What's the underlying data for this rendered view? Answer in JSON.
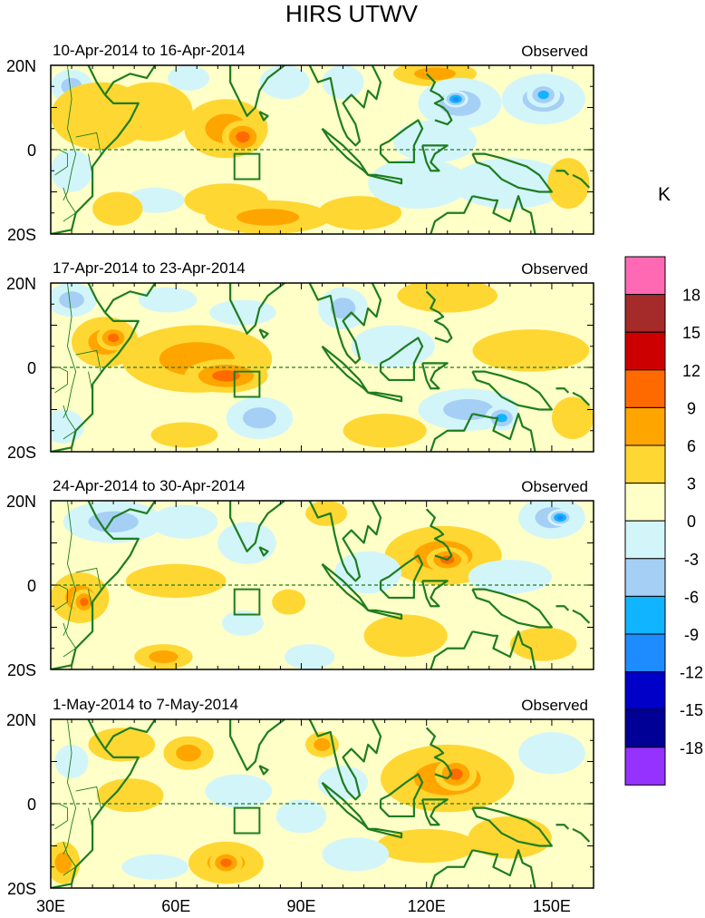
{
  "chart_data": {
    "type": "heatmap",
    "title": "HIRS UTWV",
    "variable": "UTWV",
    "units_label": "K",
    "lon_range": [
      30,
      160
    ],
    "lat_range": [
      -20,
      20
    ],
    "x_ticks": [
      {
        "value": 30,
        "label": "30E"
      },
      {
        "value": 60,
        "label": "60E"
      },
      {
        "value": 90,
        "label": "90E"
      },
      {
        "value": 120,
        "label": "120E"
      },
      {
        "value": 150,
        "label": "150E"
      }
    ],
    "y_ticks": [
      {
        "value": 20,
        "label": "20N"
      },
      {
        "value": 0,
        "label": "0"
      },
      {
        "value": -20,
        "label": "20S"
      }
    ],
    "box_region": [
      [
        74,
        -1
      ],
      [
        80,
        -1
      ],
      [
        80,
        -7
      ],
      [
        74,
        -7
      ]
    ],
    "colorbar": {
      "labels": [
        "18",
        "15",
        "12",
        "9",
        "6",
        "3",
        "0",
        "-3",
        "-6",
        "-9",
        "-12",
        "-15",
        "-18"
      ],
      "colors": [
        "#ff69b4",
        "#a52a2a",
        "#cd0000",
        "#ff6a00",
        "#ffa500",
        "#ffd733",
        "#ffffc8",
        "#d2f5fa",
        "#a6cff5",
        "#10b4ff",
        "#1e8cff",
        "#0000c8",
        "#000096",
        "#9632ff"
      ]
    },
    "panels": [
      {
        "date_label": "10-Apr-2014 to 16-Apr-2014",
        "tag": "Observed",
        "features": [
          {
            "lon": 35,
            "lat": 15,
            "v": -6,
            "rx": 5,
            "ry": 4
          },
          {
            "lon": 42,
            "lat": 8,
            "v": 5,
            "rx": 12,
            "ry": 8
          },
          {
            "lon": 54,
            "lat": 9,
            "v": 5,
            "rx": 10,
            "ry": 7
          },
          {
            "lon": 72,
            "lat": 5,
            "v": 7,
            "rx": 10,
            "ry": 7
          },
          {
            "lon": 76,
            "lat": 3,
            "v": 10,
            "rx": 5,
            "ry": 4
          },
          {
            "lon": 63,
            "lat": 17,
            "v": -5,
            "rx": 5,
            "ry": 3
          },
          {
            "lon": 86,
            "lat": 16,
            "v": -5,
            "rx": 6,
            "ry": 4
          },
          {
            "lon": 100,
            "lat": 16,
            "v": -5,
            "rx": 5,
            "ry": 4
          },
          {
            "lon": 122,
            "lat": 18,
            "v": 7,
            "rx": 10,
            "ry": 3
          },
          {
            "lon": 128,
            "lat": 11,
            "v": -8,
            "rx": 10,
            "ry": 6
          },
          {
            "lon": 127,
            "lat": 12,
            "v": -13,
            "rx": 3,
            "ry": 2
          },
          {
            "lon": 148,
            "lat": 12,
            "v": -6,
            "rx": 10,
            "ry": 6
          },
          {
            "lon": 148,
            "lat": 13,
            "v": -10,
            "rx": 4,
            "ry": 3
          },
          {
            "lon": 35,
            "lat": -5,
            "v": -4,
            "rx": 5,
            "ry": 5
          },
          {
            "lon": 55,
            "lat": -12,
            "v": -3,
            "rx": 7,
            "ry": 3
          },
          {
            "lon": 72,
            "lat": -12,
            "v": 3,
            "rx": 10,
            "ry": 4
          },
          {
            "lon": 82,
            "lat": -16,
            "v": 8,
            "rx": 15,
            "ry": 4
          },
          {
            "lon": 104,
            "lat": -15,
            "v": 5,
            "rx": 10,
            "ry": 4
          },
          {
            "lon": 118,
            "lat": -8,
            "v": -4,
            "rx": 12,
            "ry": 6
          },
          {
            "lon": 140,
            "lat": -8,
            "v": -5,
            "rx": 14,
            "ry": 6
          },
          {
            "lon": 122,
            "lat": 2,
            "v": -3,
            "rx": 10,
            "ry": 5
          },
          {
            "lon": 154,
            "lat": -8,
            "v": 3,
            "rx": 5,
            "ry": 6
          },
          {
            "lon": 46,
            "lat": -14,
            "v": 3,
            "rx": 6,
            "ry": 4
          }
        ]
      },
      {
        "date_label": "17-Apr-2014 to 23-Apr-2014",
        "tag": "Observed",
        "features": [
          {
            "lon": 35,
            "lat": 16,
            "v": -6,
            "rx": 6,
            "ry": 4
          },
          {
            "lon": 43,
            "lat": 6,
            "v": 6,
            "rx": 8,
            "ry": 6
          },
          {
            "lon": 65,
            "lat": 2,
            "v": 6,
            "rx": 18,
            "ry": 8
          },
          {
            "lon": 72,
            "lat": -2,
            "v": 10,
            "rx": 10,
            "ry": 4
          },
          {
            "lon": 45,
            "lat": 7,
            "v": 9,
            "rx": 4,
            "ry": 3
          },
          {
            "lon": 58,
            "lat": 16,
            "v": -4,
            "rx": 7,
            "ry": 3
          },
          {
            "lon": 76,
            "lat": 13,
            "v": -3,
            "rx": 8,
            "ry": 3
          },
          {
            "lon": 100,
            "lat": 14,
            "v": -6,
            "rx": 6,
            "ry": 5
          },
          {
            "lon": 125,
            "lat": 17,
            "v": 5,
            "rx": 12,
            "ry": 4
          },
          {
            "lon": 145,
            "lat": 4,
            "v": 5,
            "rx": 14,
            "ry": 5
          },
          {
            "lon": 130,
            "lat": -10,
            "v": -6,
            "rx": 12,
            "ry": 5
          },
          {
            "lon": 138,
            "lat": -12,
            "v": -10,
            "rx": 4,
            "ry": 3
          },
          {
            "lon": 80,
            "lat": -12,
            "v": -7,
            "rx": 8,
            "ry": 5
          },
          {
            "lon": 33,
            "lat": -14,
            "v": -5,
            "rx": 5,
            "ry": 4
          },
          {
            "lon": 110,
            "lat": -15,
            "v": 5,
            "rx": 10,
            "ry": 4
          },
          {
            "lon": 112,
            "lat": 5,
            "v": -3,
            "rx": 10,
            "ry": 5
          },
          {
            "lon": 155,
            "lat": -12,
            "v": 3,
            "rx": 5,
            "ry": 5
          },
          {
            "lon": 62,
            "lat": -16,
            "v": 3,
            "rx": 8,
            "ry": 3
          }
        ]
      },
      {
        "date_label": "24-Apr-2014 to 30-Apr-2014",
        "tag": "Observed",
        "features": [
          {
            "lon": 45,
            "lat": 15,
            "v": -6,
            "rx": 12,
            "ry": 5
          },
          {
            "lon": 62,
            "lat": 15,
            "v": -5,
            "rx": 8,
            "ry": 4
          },
          {
            "lon": 77,
            "lat": 10,
            "v": -3,
            "rx": 7,
            "ry": 5
          },
          {
            "lon": 37,
            "lat": -3,
            "v": 6,
            "rx": 7,
            "ry": 6
          },
          {
            "lon": 38,
            "lat": -4,
            "v": 9,
            "rx": 3,
            "ry": 3
          },
          {
            "lon": 60,
            "lat": 1,
            "v": 4,
            "rx": 12,
            "ry": 4
          },
          {
            "lon": 57,
            "lat": -17,
            "v": 6,
            "rx": 7,
            "ry": 3
          },
          {
            "lon": 76,
            "lat": -9,
            "v": -5,
            "rx": 5,
            "ry": 3
          },
          {
            "lon": 96,
            "lat": 17,
            "v": 5,
            "rx": 5,
            "ry": 3
          },
          {
            "lon": 124,
            "lat": 7,
            "v": 6,
            "rx": 14,
            "ry": 7
          },
          {
            "lon": 125,
            "lat": 6,
            "v": 10,
            "rx": 5,
            "ry": 3
          },
          {
            "lon": 150,
            "lat": 16,
            "v": -8,
            "rx": 8,
            "ry": 5
          },
          {
            "lon": 152,
            "lat": 16,
            "v": -13,
            "rx": 3,
            "ry": 2
          },
          {
            "lon": 140,
            "lat": 2,
            "v": -3,
            "rx": 10,
            "ry": 4
          },
          {
            "lon": 115,
            "lat": -12,
            "v": 4,
            "rx": 10,
            "ry": 5
          },
          {
            "lon": 148,
            "lat": -14,
            "v": 5,
            "rx": 8,
            "ry": 4
          },
          {
            "lon": 106,
            "lat": 3,
            "v": -3,
            "rx": 8,
            "ry": 5
          },
          {
            "lon": 87,
            "lat": -4,
            "v": 3,
            "rx": 4,
            "ry": 3
          },
          {
            "lon": 92,
            "lat": -17,
            "v": -3,
            "rx": 6,
            "ry": 3
          }
        ]
      },
      {
        "date_label": "1-May-2014 to 7-May-2014",
        "tag": "Observed",
        "features": [
          {
            "lon": 47,
            "lat": 14,
            "v": 3,
            "rx": 8,
            "ry": 4
          },
          {
            "lon": 63,
            "lat": 12,
            "v": 6,
            "rx": 6,
            "ry": 4
          },
          {
            "lon": 49,
            "lat": 2,
            "v": 3,
            "rx": 8,
            "ry": 4
          },
          {
            "lon": 75,
            "lat": 3,
            "v": -5,
            "rx": 8,
            "ry": 4
          },
          {
            "lon": 72,
            "lat": -14,
            "v": 6,
            "rx": 9,
            "ry": 5
          },
          {
            "lon": 72,
            "lat": -14,
            "v": 10,
            "rx": 4,
            "ry": 3
          },
          {
            "lon": 95,
            "lat": 14,
            "v": 6,
            "rx": 4,
            "ry": 3
          },
          {
            "lon": 125,
            "lat": 6,
            "v": 6,
            "rx": 16,
            "ry": 8
          },
          {
            "lon": 127,
            "lat": 7,
            "v": 9,
            "rx": 5,
            "ry": 4
          },
          {
            "lon": 120,
            "lat": -10,
            "v": 4,
            "rx": 12,
            "ry": 4
          },
          {
            "lon": 140,
            "lat": -8,
            "v": 3,
            "rx": 10,
            "ry": 5
          },
          {
            "lon": 103,
            "lat": -12,
            "v": -5,
            "rx": 8,
            "ry": 4
          },
          {
            "lon": 90,
            "lat": -3,
            "v": -4,
            "rx": 6,
            "ry": 4
          },
          {
            "lon": 33,
            "lat": -14,
            "v": 6,
            "rx": 4,
            "ry": 5
          },
          {
            "lon": 55,
            "lat": -15,
            "v": -3,
            "rx": 8,
            "ry": 3
          },
          {
            "lon": 100,
            "lat": 5,
            "v": -3,
            "rx": 6,
            "ry": 4
          },
          {
            "lon": 150,
            "lat": 12,
            "v": -3,
            "rx": 8,
            "ry": 5
          },
          {
            "lon": 35,
            "lat": 10,
            "v": -3,
            "rx": 4,
            "ry": 4
          }
        ]
      }
    ]
  }
}
